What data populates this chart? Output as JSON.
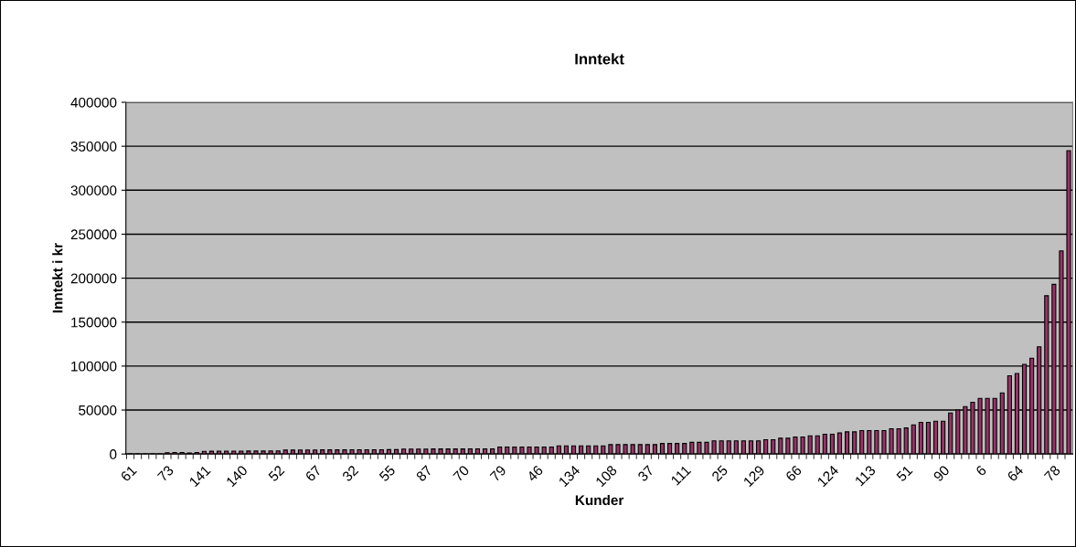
{
  "chart_data": {
    "type": "bar",
    "title": "Inntekt",
    "xlabel": "Kunder",
    "ylabel": "Inntekt i kr",
    "categories": [
      "61",
      null,
      null,
      null,
      null,
      "73",
      null,
      null,
      null,
      null,
      "141",
      null,
      null,
      null,
      null,
      "140",
      null,
      null,
      null,
      null,
      "52",
      null,
      null,
      null,
      null,
      "67",
      null,
      null,
      null,
      null,
      "32",
      null,
      null,
      null,
      null,
      "55",
      null,
      null,
      null,
      null,
      "87",
      null,
      null,
      null,
      null,
      "70",
      null,
      null,
      null,
      null,
      "79",
      null,
      null,
      null,
      null,
      "46",
      null,
      null,
      null,
      null,
      "134",
      null,
      null,
      null,
      null,
      "108",
      null,
      null,
      null,
      null,
      "37",
      null,
      null,
      null,
      null,
      "111",
      null,
      null,
      null,
      null,
      "25",
      null,
      null,
      null,
      null,
      "129",
      null,
      null,
      null,
      null,
      "66",
      null,
      null,
      null,
      null,
      "124",
      null,
      null,
      null,
      null,
      "113",
      null,
      null,
      null,
      null,
      "51",
      null,
      null,
      null,
      null,
      "90",
      null,
      null,
      null,
      null,
      "6",
      null,
      null,
      null,
      null,
      "64",
      null,
      null,
      null,
      null,
      "78",
      null,
      null
    ],
    "values": [
      0,
      0,
      0,
      0,
      0,
      1500,
      1800,
      1800,
      1200,
      1800,
      3000,
      3200,
      3300,
      3300,
      3300,
      3300,
      3400,
      3400,
      3400,
      3500,
      3600,
      4500,
      4500,
      4600,
      4600,
      4600,
      4700,
      4700,
      4700,
      4700,
      4800,
      4800,
      4800,
      4900,
      4900,
      5000,
      5000,
      5600,
      5700,
      5700,
      5700,
      5800,
      5800,
      5800,
      5800,
      5800,
      5900,
      5900,
      5900,
      5900,
      8000,
      8000,
      8000,
      8000,
      8000,
      8000,
      8000,
      8000,
      9300,
      9300,
      9300,
      9300,
      9300,
      9300,
      9300,
      10700,
      10700,
      10700,
      10700,
      10700,
      10700,
      10700,
      12000,
      12000,
      12000,
      12000,
      13300,
      13300,
      13300,
      15000,
      15000,
      15000,
      15000,
      15000,
      15000,
      15000,
      16300,
      16300,
      18000,
      18000,
      19400,
      19400,
      20700,
      20700,
      22500,
      22500,
      23900,
      25200,
      25200,
      26700,
      26700,
      26700,
      26700,
      28700,
      28700,
      29700,
      33200,
      36000,
      36000,
      37300,
      37300,
      46700,
      50000,
      53900,
      58800,
      63300,
      63300,
      63300,
      69500,
      88900,
      91600,
      102000,
      108900,
      122000,
      180000,
      193000,
      231000,
      345000
    ],
    "color": "#993366",
    "ylim": [
      0,
      400000
    ],
    "yticks": [
      0,
      50000,
      100000,
      150000,
      200000,
      250000,
      300000,
      350000,
      400000
    ],
    "grid": "y",
    "legend": false
  }
}
